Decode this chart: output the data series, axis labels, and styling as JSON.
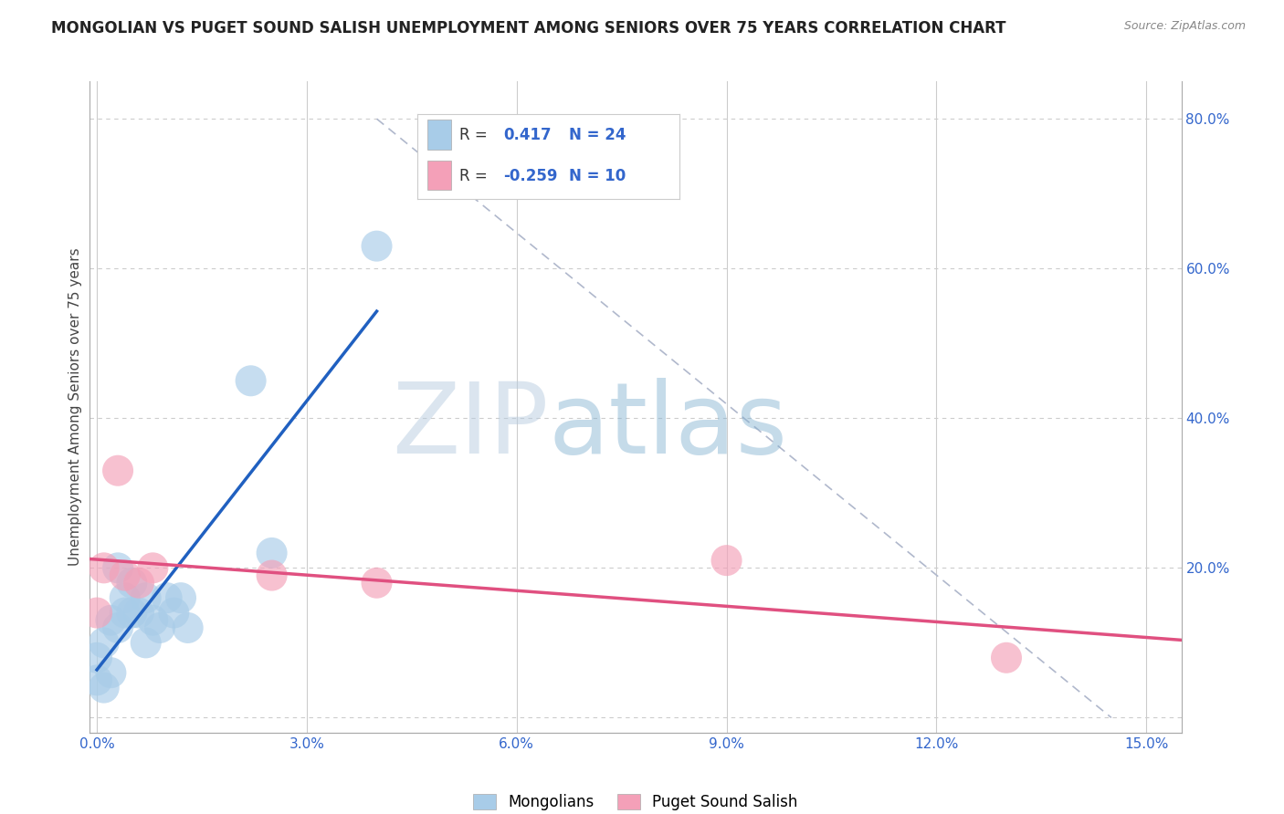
{
  "title": "MONGOLIAN VS PUGET SOUND SALISH UNEMPLOYMENT AMONG SENIORS OVER 75 YEARS CORRELATION CHART",
  "source": "Source: ZipAtlas.com",
  "ylabel": "Unemployment Among Seniors over 75 years",
  "xlim": [
    -0.001,
    0.155
  ],
  "ylim": [
    -0.02,
    0.85
  ],
  "xticks": [
    0.0,
    0.03,
    0.06,
    0.09,
    0.12,
    0.15
  ],
  "xticklabels": [
    "0.0%",
    "3.0%",
    "6.0%",
    "9.0%",
    "12.0%",
    "15.0%"
  ],
  "yticks": [
    0.0,
    0.2,
    0.4,
    0.6,
    0.8
  ],
  "yticklabels_right": [
    "",
    "20.0%",
    "40.0%",
    "60.0%",
    "80.0%"
  ],
  "mongolian_x": [
    0.0,
    0.0,
    0.001,
    0.001,
    0.002,
    0.002,
    0.003,
    0.003,
    0.004,
    0.004,
    0.005,
    0.005,
    0.006,
    0.007,
    0.007,
    0.008,
    0.009,
    0.01,
    0.011,
    0.012,
    0.013,
    0.022,
    0.025,
    0.04
  ],
  "mongolian_y": [
    0.05,
    0.08,
    0.04,
    0.1,
    0.06,
    0.13,
    0.12,
    0.2,
    0.16,
    0.14,
    0.18,
    0.14,
    0.14,
    0.16,
    0.1,
    0.13,
    0.12,
    0.16,
    0.14,
    0.16,
    0.12,
    0.45,
    0.22,
    0.63
  ],
  "salish_x": [
    0.0,
    0.001,
    0.003,
    0.004,
    0.006,
    0.008,
    0.025,
    0.04,
    0.09,
    0.13
  ],
  "salish_y": [
    0.14,
    0.2,
    0.33,
    0.19,
    0.18,
    0.2,
    0.19,
    0.18,
    0.21,
    0.08
  ],
  "mongolian_color": "#a8cce8",
  "salish_color": "#f4a0b8",
  "mongolian_line_color": "#2060c0",
  "salish_line_color": "#e05080",
  "ref_line_color": "#b0b8cc",
  "R_mongolian": 0.417,
  "N_mongolian": 24,
  "R_salish": -0.259,
  "N_salish": 10,
  "watermark_zip": "ZIP",
  "watermark_atlas": "atlas",
  "background_color": "#ffffff",
  "grid_color": "#cccccc",
  "ref_line_x": [
    0.04,
    0.145
  ],
  "ref_line_y": [
    0.8,
    0.0
  ]
}
